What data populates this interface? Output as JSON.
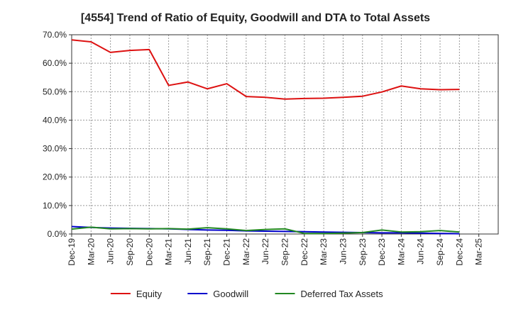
{
  "chart_data": {
    "type": "line",
    "title": "[4554]  Trend of Ratio of Equity, Goodwill and DTA to Total Assets",
    "xlabel": "",
    "ylabel": "",
    "ylim": [
      0,
      70
    ],
    "y_ticks": [
      0,
      10,
      20,
      30,
      40,
      50,
      60,
      70
    ],
    "y_tick_labels": [
      "0.0%",
      "10.0%",
      "20.0%",
      "30.0%",
      "40.0%",
      "50.0%",
      "60.0%",
      "70.0%"
    ],
    "grid": true,
    "legend_position": "bottom",
    "categories": [
      "Dec-19",
      "Mar-20",
      "Jun-20",
      "Sep-20",
      "Dec-20",
      "Mar-21",
      "Jun-21",
      "Sep-21",
      "Dec-21",
      "Mar-22",
      "Jun-22",
      "Sep-22",
      "Dec-22",
      "Mar-23",
      "Jun-23",
      "Sep-23",
      "Dec-23",
      "Mar-24",
      "Jun-24",
      "Sep-24",
      "Dec-24",
      "Mar-25"
    ],
    "series": [
      {
        "name": "Equity",
        "color": "#dd1111",
        "values": [
          68.2,
          67.5,
          63.8,
          64.5,
          64.8,
          52.2,
          53.4,
          51.0,
          52.8,
          48.3,
          48.0,
          47.4,
          47.6,
          47.7,
          48.0,
          48.4,
          49.9,
          52.0,
          51.0,
          50.7,
          50.8,
          null
        ]
      },
      {
        "name": "Goodwill",
        "color": "#0000cc",
        "values": [
          2.6,
          2.3,
          2.1,
          2.0,
          1.9,
          1.8,
          1.6,
          1.4,
          1.3,
          1.1,
          1.0,
          0.9,
          0.8,
          0.7,
          0.6,
          0.5,
          0.4,
          0.4,
          0.3,
          0.2,
          0.1,
          null
        ]
      },
      {
        "name": "Deferred Tax Assets",
        "color": "#228822",
        "values": [
          1.7,
          2.4,
          1.8,
          1.9,
          1.8,
          1.9,
          1.7,
          2.2,
          1.8,
          1.2,
          1.6,
          1.8,
          0.2,
          0.2,
          0.3,
          0.5,
          1.4,
          0.7,
          0.8,
          1.2,
          0.7,
          null
        ]
      }
    ]
  }
}
